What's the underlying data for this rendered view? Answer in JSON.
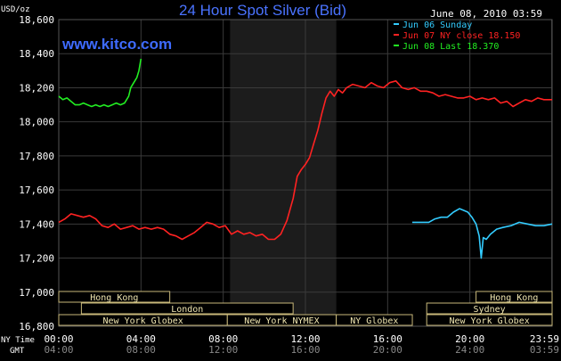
{
  "chart_data": {
    "type": "line",
    "title": "24 Hour Spot Silver (Bid)",
    "unit_label": "USD/oz",
    "timestamp": "June 08, 2010 03:59",
    "watermark": "www.kitco.com",
    "ylim": [
      16.8,
      18.6
    ],
    "xlim": [
      0,
      24
    ],
    "grid": true,
    "legend_position": "top-right",
    "y_ticks": [
      "18,600",
      "18,400",
      "18,200",
      "18,000",
      "17,800",
      "17,600",
      "17,400",
      "17,200",
      "17,000",
      "16,800"
    ],
    "y_tick_values": [
      18.6,
      18.4,
      18.2,
      18.0,
      17.8,
      17.6,
      17.4,
      17.2,
      17.0,
      16.8
    ],
    "x_row_label": "NY Time",
    "gmt_row_label": "GMT",
    "x_ticks": [
      "00:00",
      "04:00",
      "08:00",
      "12:00",
      "16:00",
      "20:00",
      "23:59"
    ],
    "gmt_ticks": [
      "04:00",
      "08:00",
      "12:00",
      "16:00",
      "20:00",
      "24:00",
      "03:59"
    ],
    "tick_hours": [
      0,
      4,
      8,
      12,
      16,
      20,
      23.983
    ],
    "shaded_hours": [
      8.333,
      13.5
    ],
    "legend": [
      {
        "label": "Jun 06 Sunday",
        "color": "#33ccff"
      },
      {
        "label": "Jun 07 NY close 18.150",
        "color": "#ff2222"
      },
      {
        "label": "Jun 08 Last 18.370",
        "color": "#22ee22"
      }
    ],
    "sessions": [
      {
        "label": "Hong Kong",
        "start": 0,
        "end": 5.4,
        "row": 0
      },
      {
        "label": "Hong Kong",
        "start": 20.3,
        "end": 24,
        "row": 0
      },
      {
        "label": "London",
        "start": 1.1,
        "end": 11.4,
        "row": 1
      },
      {
        "label": "Sydney",
        "start": 17.9,
        "end": 24,
        "row": 1
      },
      {
        "label": "New York Globex",
        "start": 0,
        "end": 8.2,
        "row": 2
      },
      {
        "label": "New York NYMEX",
        "start": 8.2,
        "end": 13.5,
        "row": 2
      },
      {
        "label": "NY Globex",
        "start": 13.5,
        "end": 17.2,
        "row": 2
      },
      {
        "label": "New York Globex",
        "start": 17.9,
        "end": 24,
        "row": 2
      }
    ],
    "series": [
      {
        "name": "Jun 06 Sunday",
        "color": "#33ccff",
        "points": [
          [
            17.2,
            17.41
          ],
          [
            17.6,
            17.41
          ],
          [
            18.0,
            17.41
          ],
          [
            18.3,
            17.43
          ],
          [
            18.6,
            17.44
          ],
          [
            18.9,
            17.44
          ],
          [
            19.2,
            17.47
          ],
          [
            19.5,
            17.49
          ],
          [
            19.7,
            17.48
          ],
          [
            19.9,
            17.47
          ],
          [
            20.1,
            17.44
          ],
          [
            20.3,
            17.4
          ],
          [
            20.45,
            17.33
          ],
          [
            20.55,
            17.2
          ],
          [
            20.65,
            17.32
          ],
          [
            20.8,
            17.31
          ],
          [
            21.0,
            17.34
          ],
          [
            21.3,
            17.37
          ],
          [
            21.6,
            17.38
          ],
          [
            22.0,
            17.39
          ],
          [
            22.4,
            17.41
          ],
          [
            22.8,
            17.4
          ],
          [
            23.2,
            17.39
          ],
          [
            23.6,
            17.39
          ],
          [
            24.0,
            17.4
          ]
        ]
      },
      {
        "name": "Jun 07 NY close 18.150",
        "color": "#ff2222",
        "points": [
          [
            0.0,
            17.41
          ],
          [
            0.3,
            17.43
          ],
          [
            0.6,
            17.46
          ],
          [
            0.9,
            17.45
          ],
          [
            1.2,
            17.44
          ],
          [
            1.5,
            17.45
          ],
          [
            1.8,
            17.43
          ],
          [
            2.1,
            17.39
          ],
          [
            2.4,
            17.38
          ],
          [
            2.7,
            17.4
          ],
          [
            3.0,
            17.37
          ],
          [
            3.3,
            17.38
          ],
          [
            3.6,
            17.39
          ],
          [
            3.9,
            17.37
          ],
          [
            4.2,
            17.38
          ],
          [
            4.5,
            17.37
          ],
          [
            4.8,
            17.38
          ],
          [
            5.1,
            17.37
          ],
          [
            5.4,
            17.34
          ],
          [
            5.7,
            17.33
          ],
          [
            6.0,
            17.31
          ],
          [
            6.3,
            17.33
          ],
          [
            6.6,
            17.35
          ],
          [
            6.9,
            17.38
          ],
          [
            7.2,
            17.41
          ],
          [
            7.5,
            17.4
          ],
          [
            7.8,
            17.38
          ],
          [
            8.1,
            17.39
          ],
          [
            8.4,
            17.34
          ],
          [
            8.7,
            17.36
          ],
          [
            9.0,
            17.34
          ],
          [
            9.3,
            17.35
          ],
          [
            9.6,
            17.33
          ],
          [
            9.9,
            17.34
          ],
          [
            10.2,
            17.31
          ],
          [
            10.5,
            17.31
          ],
          [
            10.8,
            17.34
          ],
          [
            11.1,
            17.42
          ],
          [
            11.4,
            17.55
          ],
          [
            11.6,
            17.68
          ],
          [
            11.8,
            17.72
          ],
          [
            12.0,
            17.75
          ],
          [
            12.2,
            17.79
          ],
          [
            12.4,
            17.87
          ],
          [
            12.6,
            17.95
          ],
          [
            12.8,
            18.05
          ],
          [
            13.0,
            18.14
          ],
          [
            13.2,
            18.18
          ],
          [
            13.4,
            18.15
          ],
          [
            13.6,
            18.19
          ],
          [
            13.8,
            18.17
          ],
          [
            14.0,
            18.2
          ],
          [
            14.3,
            18.22
          ],
          [
            14.6,
            18.21
          ],
          [
            14.9,
            18.2
          ],
          [
            15.2,
            18.23
          ],
          [
            15.5,
            18.21
          ],
          [
            15.8,
            18.2
          ],
          [
            16.1,
            18.23
          ],
          [
            16.4,
            18.24
          ],
          [
            16.7,
            18.2
          ],
          [
            17.0,
            18.19
          ],
          [
            17.3,
            18.2
          ],
          [
            17.6,
            18.18
          ],
          [
            17.9,
            18.18
          ],
          [
            18.2,
            18.17
          ],
          [
            18.5,
            18.15
          ],
          [
            18.8,
            18.16
          ],
          [
            19.1,
            18.15
          ],
          [
            19.4,
            18.14
          ],
          [
            19.7,
            18.14
          ],
          [
            20.0,
            18.15
          ],
          [
            20.3,
            18.13
          ],
          [
            20.6,
            18.14
          ],
          [
            20.9,
            18.13
          ],
          [
            21.2,
            18.14
          ],
          [
            21.5,
            18.11
          ],
          [
            21.8,
            18.12
          ],
          [
            22.1,
            18.09
          ],
          [
            22.4,
            18.11
          ],
          [
            22.7,
            18.13
          ],
          [
            23.0,
            18.12
          ],
          [
            23.3,
            18.14
          ],
          [
            23.6,
            18.13
          ],
          [
            24.0,
            18.13
          ]
        ]
      },
      {
        "name": "Jun 08 Last 18.370",
        "color": "#22ee22",
        "points": [
          [
            0.0,
            18.15
          ],
          [
            0.2,
            18.13
          ],
          [
            0.4,
            18.14
          ],
          [
            0.6,
            18.12
          ],
          [
            0.8,
            18.1
          ],
          [
            1.0,
            18.1
          ],
          [
            1.2,
            18.11
          ],
          [
            1.4,
            18.1
          ],
          [
            1.6,
            18.09
          ],
          [
            1.8,
            18.1
          ],
          [
            2.0,
            18.09
          ],
          [
            2.2,
            18.1
          ],
          [
            2.4,
            18.09
          ],
          [
            2.6,
            18.1
          ],
          [
            2.8,
            18.11
          ],
          [
            3.0,
            18.1
          ],
          [
            3.2,
            18.11
          ],
          [
            3.4,
            18.15
          ],
          [
            3.5,
            18.2
          ],
          [
            3.6,
            18.22
          ],
          [
            3.7,
            18.24
          ],
          [
            3.8,
            18.26
          ],
          [
            3.9,
            18.3
          ],
          [
            4.0,
            18.37
          ]
        ]
      }
    ]
  }
}
